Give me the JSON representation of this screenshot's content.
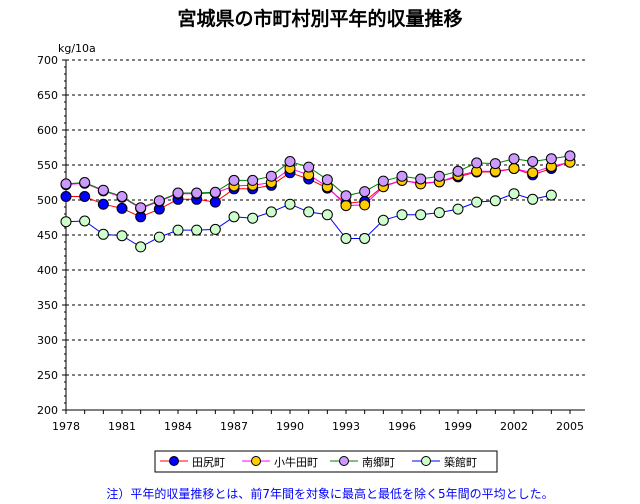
{
  "chart_data": {
    "type": "line",
    "title": "宮城県の市町村別平年的収量推移",
    "ylabel": "kg/10a",
    "xlabel": "",
    "ylim": [
      200,
      700
    ],
    "yticks": [
      200,
      250,
      300,
      350,
      400,
      450,
      500,
      550,
      600,
      650,
      700
    ],
    "xticks": [
      1978,
      1981,
      1984,
      1987,
      1990,
      1993,
      1996,
      1999,
      2002,
      2005
    ],
    "grid": "horizontal dashed",
    "legend_position": "bottom",
    "x": [
      1978,
      1979,
      1980,
      1981,
      1982,
      1983,
      1984,
      1985,
      1986,
      1987,
      1988,
      1989,
      1990,
      1991,
      1992,
      1993,
      1994,
      1995,
      1996,
      1997,
      1998,
      1999,
      2000,
      2001,
      2002,
      2003,
      2004,
      2005
    ],
    "series": [
      {
        "name": "田尻町",
        "marker": "#0000ff",
        "line": "#ff0000",
        "values": [
          505,
          505,
          494,
          488,
          476,
          487,
          501,
          501,
          497,
          516,
          516,
          521,
          539,
          530,
          517,
          495,
          498,
          520,
          528,
          524,
          526,
          533,
          540,
          540,
          545,
          536,
          545,
          555
        ]
      },
      {
        "name": "小牛田町",
        "marker": "#ffcc00",
        "line": "#ff00ff",
        "values": [
          522,
          524,
          513,
          504,
          488,
          498,
          509,
          509,
          510,
          520,
          521,
          525,
          545,
          536,
          519,
          492,
          493,
          519,
          528,
          523,
          526,
          535,
          541,
          541,
          545,
          539,
          548,
          554
        ]
      },
      {
        "name": "南郷町",
        "marker": "#cc99ff",
        "line": "#008000",
        "values": [
          523,
          525,
          514,
          505,
          489,
          499,
          510,
          510,
          511,
          528,
          528,
          534,
          555,
          547,
          529,
          506,
          512,
          527,
          534,
          530,
          534,
          541,
          553,
          552,
          559,
          555,
          559,
          563
        ]
      },
      {
        "name": "築館町",
        "marker": "#ccffcc",
        "line": "#0000ff",
        "values": [
          469,
          470,
          451,
          449,
          433,
          447,
          457,
          457,
          458,
          476,
          474,
          483,
          494,
          483,
          479,
          445,
          445,
          471,
          479,
          479,
          482,
          487,
          497,
          499,
          509,
          501,
          507,
          null
        ]
      }
    ]
  },
  "note": "注）平年的収量推移とは、前7年間を対象に最高と最低を除く5年間の平均とした。"
}
